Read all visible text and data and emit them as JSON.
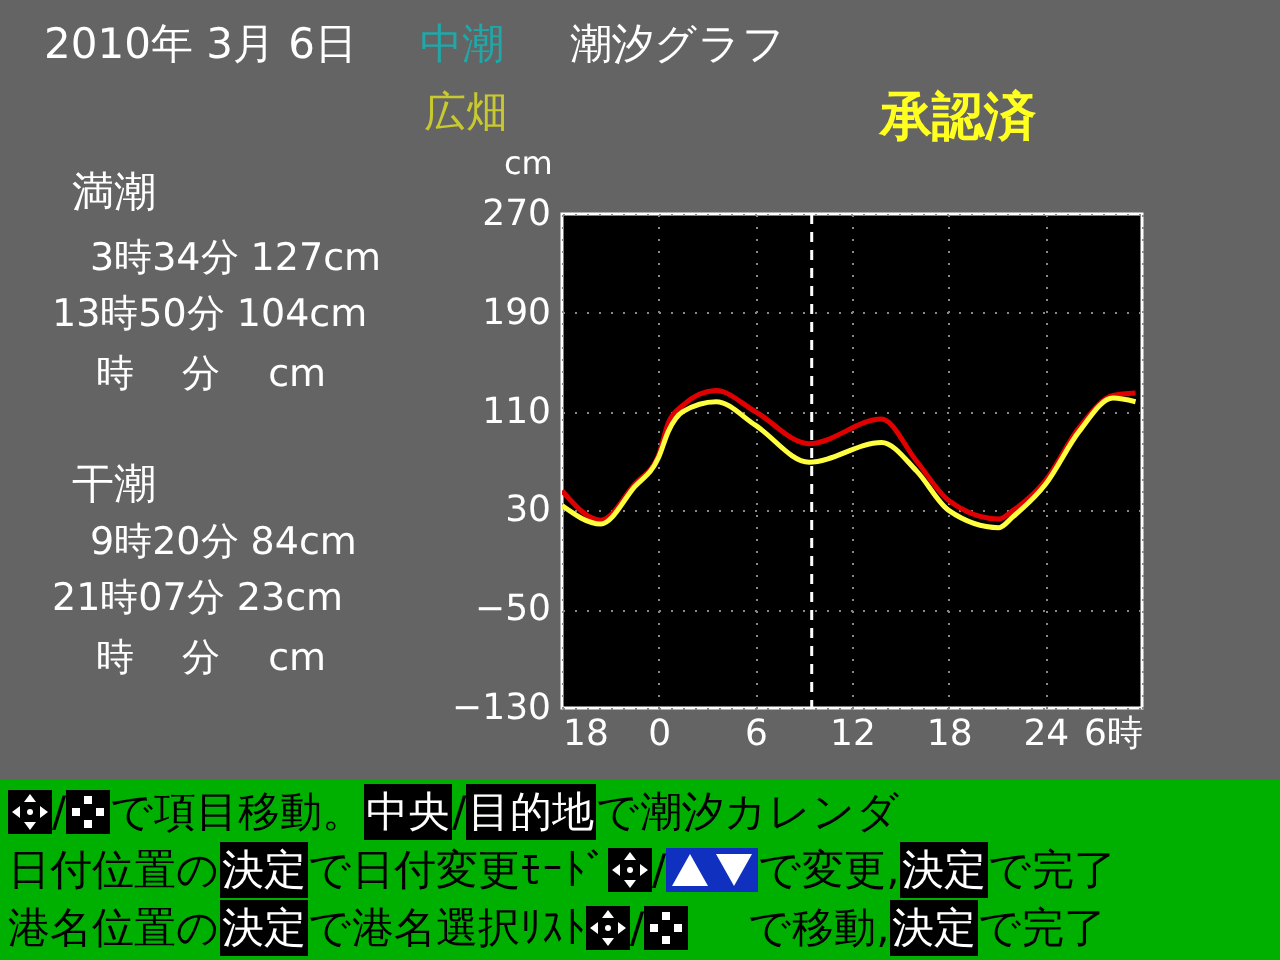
{
  "chart_data": {
    "type": "line",
    "title": "潮汐グラフ",
    "ylabel": "cm",
    "x": [
      "2010-03-05T18:00",
      "2010-03-05T20:24",
      "2010-03-05T22:30",
      "2010-03-06T00:00",
      "2010-03-06T00:36",
      "2010-03-06T01:30",
      "2010-03-06T03:34",
      "2010-03-06T06:00",
      "2010-03-06T09:20",
      "2010-03-06T13:50",
      "2010-03-06T16:00",
      "2010-03-06T18:00",
      "2010-03-06T21:07",
      "2010-03-06T22:00",
      "2010-03-07T00:00",
      "2010-03-07T02:06",
      "2010-03-07T04:12",
      "2010-03-07T05:36"
    ],
    "series": [
      {
        "color": "#e00000",
        "values": [
          46,
          22,
          51,
          75,
          101,
          115,
          127,
          110,
          84,
          104,
          70,
          38,
          23,
          30,
          54,
          97,
          123,
          125
        ]
      },
      {
        "color": "#ffff40",
        "values": [
          34,
          19,
          49,
          73,
          94,
          110,
          118,
          99,
          69,
          85,
          62,
          30,
          16,
          25,
          51,
          94,
          121,
          118
        ]
      }
    ],
    "xlim": [
      "2010-03-05T18:00",
      "2010-03-07T06:00"
    ],
    "xticks": [
      {
        "value": "2010-03-05T18:00",
        "label": "18"
      },
      {
        "value": "2010-03-06T00:00",
        "label": "0"
      },
      {
        "value": "2010-03-06T06:00",
        "label": "6"
      },
      {
        "value": "2010-03-06T12:00",
        "label": "12"
      },
      {
        "value": "2010-03-06T18:00",
        "label": "18"
      },
      {
        "value": "2010-03-07T00:00",
        "label": "24"
      },
      {
        "value": "2010-03-07T06:00",
        "label": "6時"
      }
    ],
    "ylim": [
      -130,
      270
    ],
    "yticks": [
      -130,
      -50,
      30,
      110,
      190,
      270
    ],
    "grid": true,
    "ref_lines": [
      {
        "axis": "x",
        "value": "2010-03-06T09:30",
        "color": "#ffffff",
        "line_style": "dashed"
      }
    ],
    "annotations": [
      "2010年 3月 6日",
      "中潮",
      "広畑",
      "承認済",
      "満潮",
      "3時34分 127cm",
      "13時50分 104cm",
      "時 分 cm",
      "干潮",
      "9時20分 84cm",
      "21時07分 23cm",
      "時 分 cm",
      "/",
      "で項目移動。",
      "中央",
      "/",
      "目的地",
      "で潮汐カレンダ",
      "日付位置の",
      "決定",
      "で日付変更ﾓｰﾄﾞ",
      "/",
      "で変更,",
      "決定",
      "で完了",
      "港名位置の",
      "決定",
      "で港名選択ﾘｽﾄ",
      "/",
      "で移動,",
      "決定",
      "で完了"
    ]
  }
}
